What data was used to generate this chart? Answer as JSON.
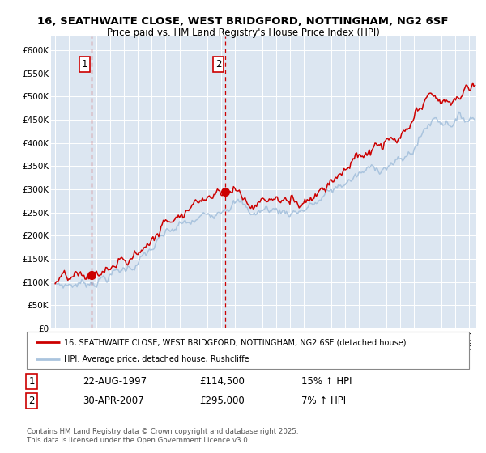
{
  "title_line1": "16, SEATHWAITE CLOSE, WEST BRIDGFORD, NOTTINGHAM, NG2 6SF",
  "title_line2": "Price paid vs. HM Land Registry's House Price Index (HPI)",
  "legend_red": "16, SEATHWAITE CLOSE, WEST BRIDGFORD, NOTTINGHAM, NG2 6SF (detached house)",
  "legend_blue": "HPI: Average price, detached house, Rushcliffe",
  "sale1_date": "22-AUG-1997",
  "sale1_price": 114500,
  "sale1_year": 1997.64,
  "sale1_hpi_pct": "15% ↑ HPI",
  "sale2_date": "30-APR-2007",
  "sale2_price": 295000,
  "sale2_year": 2007.33,
  "sale2_hpi_pct": "7% ↑ HPI",
  "ylabel_ticks": [
    "£0",
    "£50K",
    "£100K",
    "£150K",
    "£200K",
    "£250K",
    "£300K",
    "£350K",
    "£400K",
    "£450K",
    "£500K",
    "£550K",
    "£600K"
  ],
  "ytick_values": [
    0,
    50000,
    100000,
    150000,
    200000,
    250000,
    300000,
    350000,
    400000,
    450000,
    500000,
    550000,
    600000
  ],
  "ylim": [
    0,
    630000
  ],
  "xlim_start": 1994.7,
  "xlim_end": 2025.5,
  "background_color": "#dce6f1",
  "red_color": "#cc0000",
  "blue_color": "#aac4de",
  "footer_text": "Contains HM Land Registry data © Crown copyright and database right 2025.\nThis data is licensed under the Open Government Licence v3.0."
}
